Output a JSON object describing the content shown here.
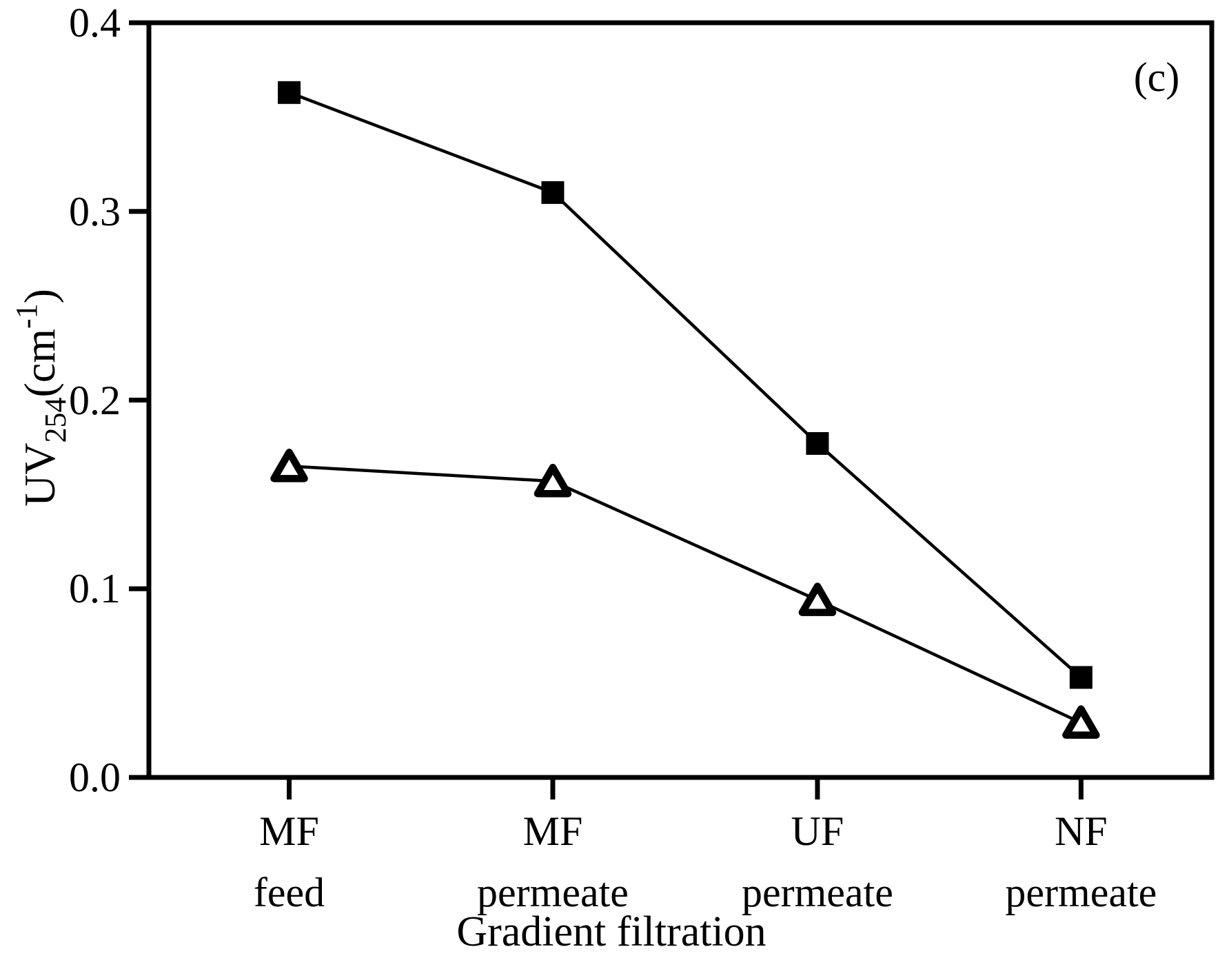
{
  "figure": {
    "panel_label": "(c)",
    "background_color": "#ffffff",
    "ink_color": "#000000"
  },
  "axes": {
    "x": {
      "label": "Gradient filtration",
      "tick_lines": [
        [
          "MF",
          "feed"
        ],
        [
          "MF",
          "permeate"
        ],
        [
          "UF",
          "permeate"
        ],
        [
          "NF",
          "permeate"
        ]
      ]
    },
    "y": {
      "label_prefix": "UV",
      "label_sub": "254",
      "label_mid": "(cm",
      "label_sup": "-1",
      "label_suffix": ")",
      "tick_labels": [
        "0.0",
        "0.1",
        "0.2",
        "0.3",
        "0.4"
      ]
    }
  },
  "chart_data": {
    "type": "line",
    "title": "",
    "panel_label": "(c)",
    "categories": [
      "MF feed",
      "MF permeate",
      "UF permeate",
      "NF permeate"
    ],
    "series": [
      {
        "name": "UV254 squares series",
        "marker": "filled-square",
        "line_style": "solid",
        "color": "#000000",
        "values": [
          0.363,
          0.31,
          0.177,
          0.053
        ]
      },
      {
        "name": "UV254 open-triangle series",
        "marker": "open-triangle",
        "line_style": "solid",
        "color": "#000000",
        "values": [
          0.165,
          0.157,
          0.094,
          0.029
        ]
      }
    ],
    "xlabel": "Gradient filtration",
    "ylabel": "UV254(cm-1)",
    "ylim": [
      0.0,
      0.4
    ],
    "yticks": [
      0.0,
      0.1,
      0.2,
      0.3,
      0.4
    ],
    "grid": false,
    "legend": "none"
  }
}
